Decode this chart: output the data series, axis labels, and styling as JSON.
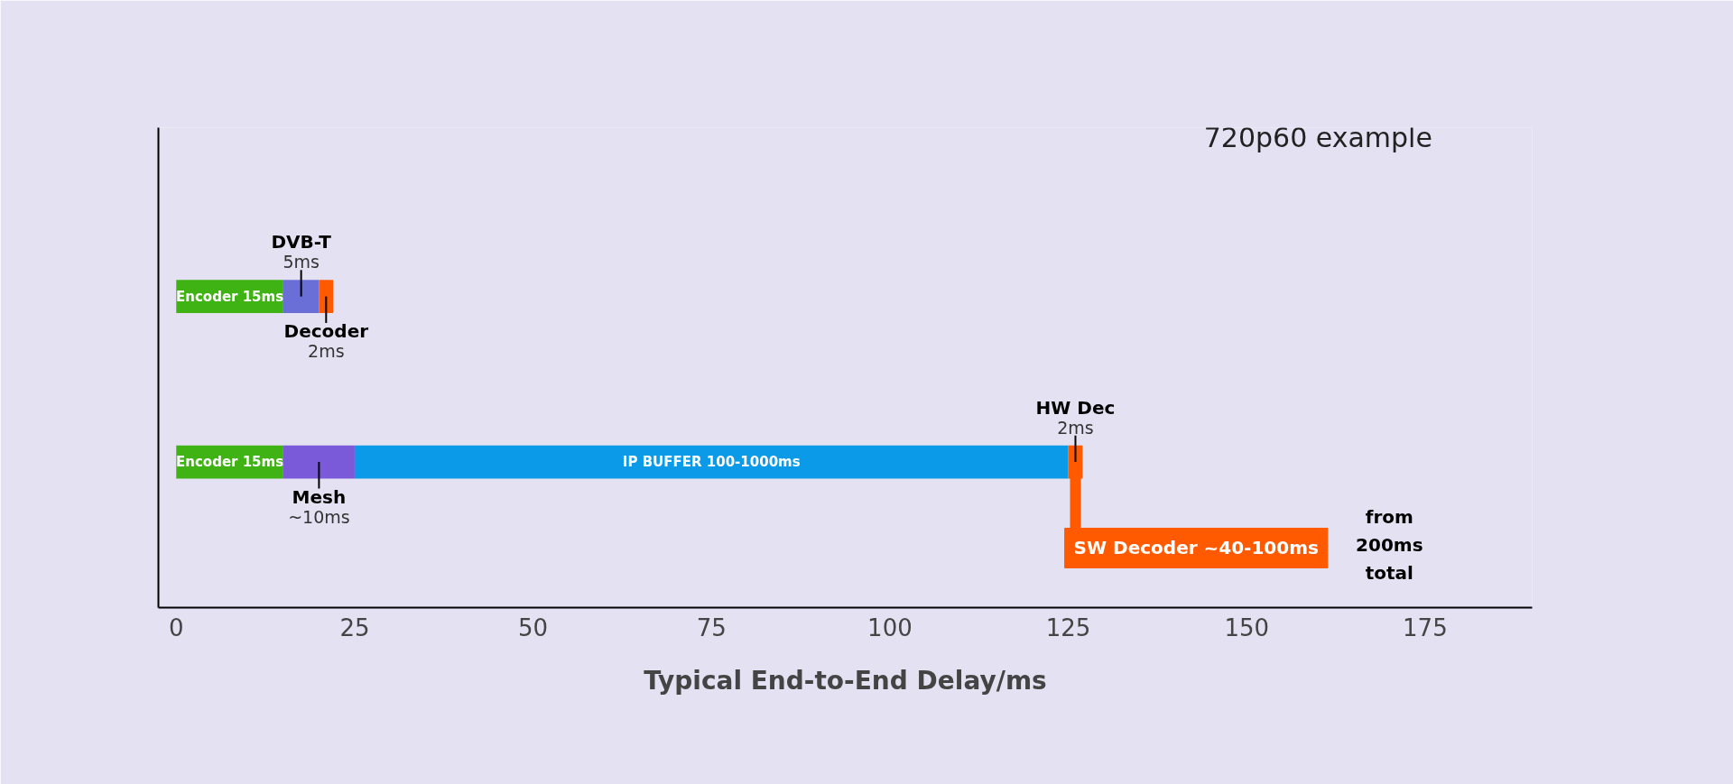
{
  "chart_data": {
    "type": "bar",
    "orientation": "horizontal",
    "stacked": true,
    "xlabel": "Typical End-to-End Delay/ms",
    "categories": [
      null,
      null
    ],
    "series": [
      {
        "name": "Encoder",
        "color": "#3fb313",
        "values": [
          15,
          15
        ],
        "value_labels": [
          "15ms",
          "15ms"
        ]
      },
      {
        "name": "DVB-T",
        "color": "#6a6fd8",
        "values": [
          5,
          null
        ],
        "value_labels": [
          "5ms",
          null
        ]
      },
      {
        "name": "Mesh",
        "color": "#7a5ad8",
        "values": [
          null,
          10
        ],
        "value_labels": [
          null,
          "~10ms"
        ]
      },
      {
        "name": "IP BUFFER",
        "color": "#0a9ae8",
        "values": [
          null,
          100
        ],
        "value_labels": [
          null,
          "100-1000ms"
        ]
      },
      {
        "name": "Decoder",
        "color": "#ff5a00",
        "values": [
          2,
          null
        ],
        "value_labels": [
          "2ms",
          null
        ]
      },
      {
        "name": "HW Dec",
        "color": "#ff5a00",
        "values": [
          null,
          2
        ],
        "value_labels": [
          null,
          "2ms"
        ]
      }
    ],
    "xlim": [
      -2.5,
      190
    ],
    "xticks": [
      0,
      25,
      50,
      75,
      100,
      125,
      150,
      175
    ],
    "tick_labels": "x",
    "grid": false,
    "annotations": [
      "720p60 example",
      "SW Decoder ~40-100ms",
      "from 200ms total"
    ]
  }
}
